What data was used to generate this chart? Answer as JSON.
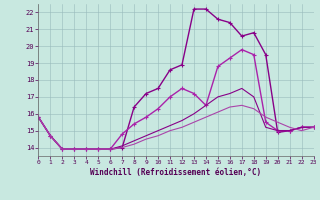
{
  "xlabel": "Windchill (Refroidissement éolien,°C)",
  "xlim": [
    0,
    23
  ],
  "ylim": [
    13.5,
    22.5
  ],
  "yticks": [
    14,
    15,
    16,
    17,
    18,
    19,
    20,
    21,
    22
  ],
  "xticks": [
    0,
    1,
    2,
    3,
    4,
    5,
    6,
    7,
    8,
    9,
    10,
    11,
    12,
    13,
    14,
    15,
    16,
    17,
    18,
    19,
    20,
    21,
    22,
    23
  ],
  "background_color": "#c8e8e0",
  "grid_color": "#99bbbb",
  "series": [
    {
      "x": [
        0,
        1,
        2,
        3,
        4,
        5,
        6,
        7,
        8,
        9,
        10,
        11,
        12,
        13,
        14,
        15,
        16,
        17,
        18,
        19,
        20,
        21,
        22,
        23
      ],
      "y": [
        15.8,
        14.7,
        13.9,
        13.9,
        13.9,
        13.9,
        13.9,
        14.0,
        16.4,
        17.2,
        17.5,
        18.6,
        18.9,
        22.2,
        22.2,
        21.6,
        21.4,
        20.6,
        20.8,
        19.5,
        14.9,
        15.0,
        15.2,
        15.2
      ],
      "color": "#880088",
      "lw": 1.0,
      "marker": "+"
    },
    {
      "x": [
        0,
        1,
        2,
        3,
        4,
        5,
        6,
        7,
        8,
        9,
        10,
        11,
        12,
        13,
        14,
        15,
        16,
        17,
        18,
        19,
        20,
        21,
        22,
        23
      ],
      "y": [
        15.8,
        14.7,
        13.9,
        13.9,
        13.9,
        13.9,
        13.9,
        14.8,
        15.4,
        15.8,
        16.3,
        17.0,
        17.5,
        17.2,
        16.5,
        18.8,
        19.3,
        19.8,
        19.5,
        15.5,
        15.0,
        15.0,
        15.2,
        15.2
      ],
      "color": "#aa22aa",
      "lw": 1.0,
      "marker": "+"
    },
    {
      "x": [
        0,
        1,
        2,
        3,
        4,
        5,
        6,
        7,
        8,
        9,
        10,
        11,
        12,
        13,
        14,
        15,
        16,
        17,
        18,
        19,
        20,
        21,
        22,
        23
      ],
      "y": [
        15.8,
        14.7,
        13.9,
        13.9,
        13.9,
        13.9,
        13.9,
        14.1,
        14.4,
        14.7,
        15.0,
        15.3,
        15.6,
        16.0,
        16.5,
        17.0,
        17.2,
        17.5,
        17.0,
        15.2,
        15.0,
        15.0,
        15.2,
        15.2
      ],
      "color": "#880088",
      "lw": 0.8,
      "marker": null
    },
    {
      "x": [
        0,
        1,
        2,
        3,
        4,
        5,
        6,
        7,
        8,
        9,
        10,
        11,
        12,
        13,
        14,
        15,
        16,
        17,
        18,
        19,
        20,
        21,
        22,
        23
      ],
      "y": [
        15.8,
        14.7,
        13.9,
        13.9,
        13.9,
        13.9,
        13.9,
        14.0,
        14.2,
        14.5,
        14.7,
        15.0,
        15.2,
        15.5,
        15.8,
        16.1,
        16.4,
        16.5,
        16.3,
        15.8,
        15.5,
        15.2,
        15.0,
        15.2
      ],
      "color": "#aa44aa",
      "lw": 0.8,
      "marker": null
    }
  ]
}
